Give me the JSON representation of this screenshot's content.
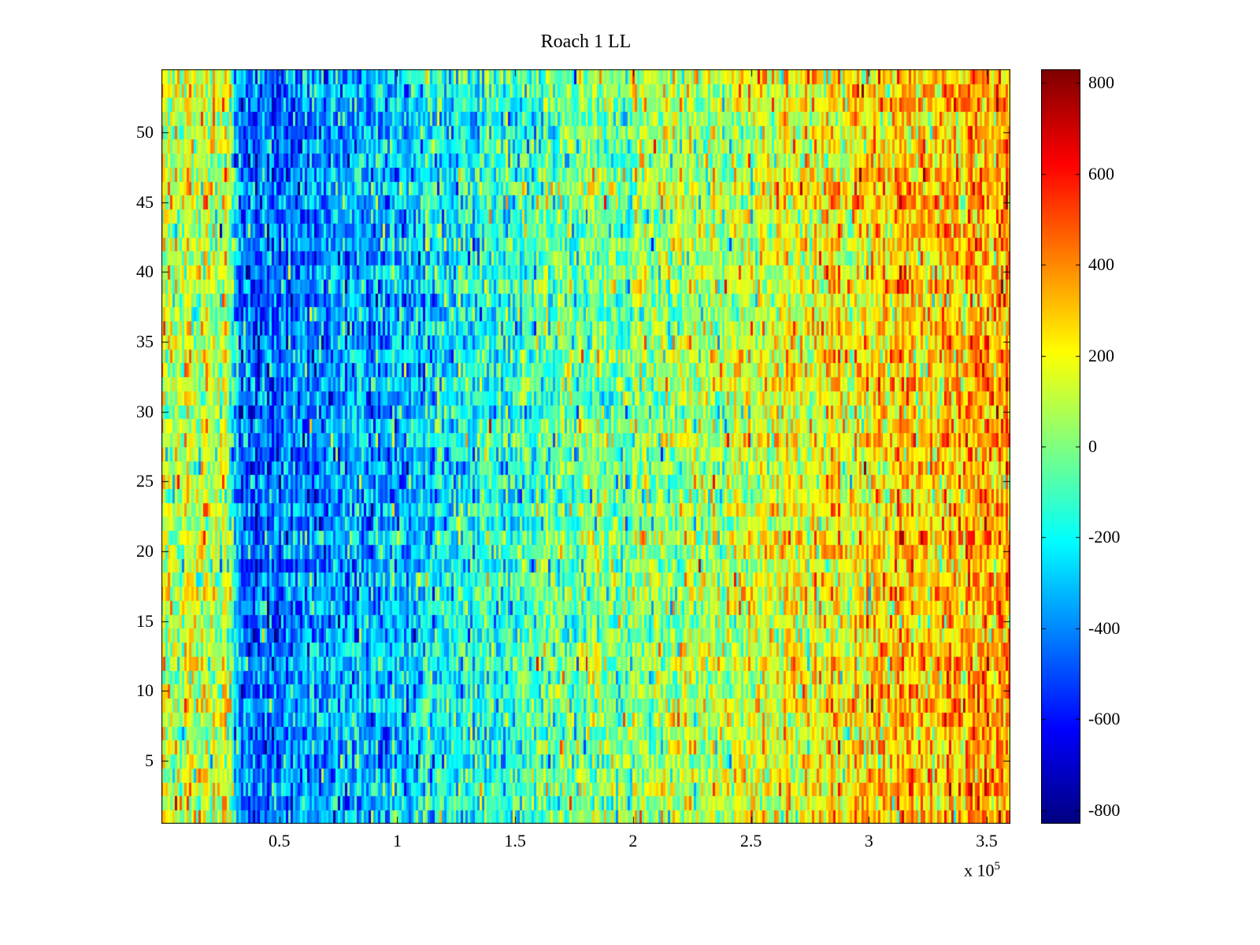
{
  "chart_data": {
    "type": "heatmap",
    "title": "Roach 1 LL",
    "colormap": "jet",
    "x_range_1e5": [
      0,
      3.6
    ],
    "x_tick_values_1e5": [
      0.5,
      1,
      1.5,
      2,
      2.5,
      3,
      3.5
    ],
    "x_tick_labels": [
      "0.5",
      "1",
      "1.5",
      "2",
      "2.5",
      "3",
      "3.5"
    ],
    "x_exponent_prefix": "x 10",
    "x_exponent": "5",
    "rows": 54,
    "y_range": [
      0.5,
      54.5
    ],
    "y_tick_values": [
      5,
      10,
      15,
      20,
      25,
      30,
      35,
      40,
      45,
      50
    ],
    "y_tick_labels": [
      "5",
      "10",
      "15",
      "20",
      "25",
      "30",
      "35",
      "40",
      "45",
      "50"
    ],
    "colorbar": {
      "clim": [
        -830,
        830
      ],
      "tick_values": [
        800,
        600,
        400,
        200,
        0,
        -200,
        -400,
        -600,
        -800
      ],
      "tick_labels": [
        "800",
        "600",
        "400",
        "200",
        "0",
        "-200",
        "-400",
        "-600",
        "-800"
      ]
    },
    "x_mean_profile_1e5": [
      [
        0.0,
        120
      ],
      [
        0.28,
        120
      ],
      [
        0.33,
        -380
      ],
      [
        0.42,
        -450
      ],
      [
        0.65,
        -380
      ],
      [
        0.9,
        -300
      ],
      [
        1.2,
        -200
      ],
      [
        1.5,
        -110
      ],
      [
        1.8,
        -30
      ],
      [
        2.1,
        40
      ],
      [
        2.4,
        110
      ],
      [
        2.7,
        190
      ],
      [
        3.0,
        260
      ],
      [
        3.3,
        310
      ],
      [
        3.6,
        350
      ]
    ],
    "noise_sd": 160,
    "description": "Noisy jet-colormap heatmap, 54 rows: yellow-green band at far left, sharp deep-blue band near x=0.3e5-0.9e5, then gradual warming through cyan, green and yellow to orange-red at the right edge."
  }
}
